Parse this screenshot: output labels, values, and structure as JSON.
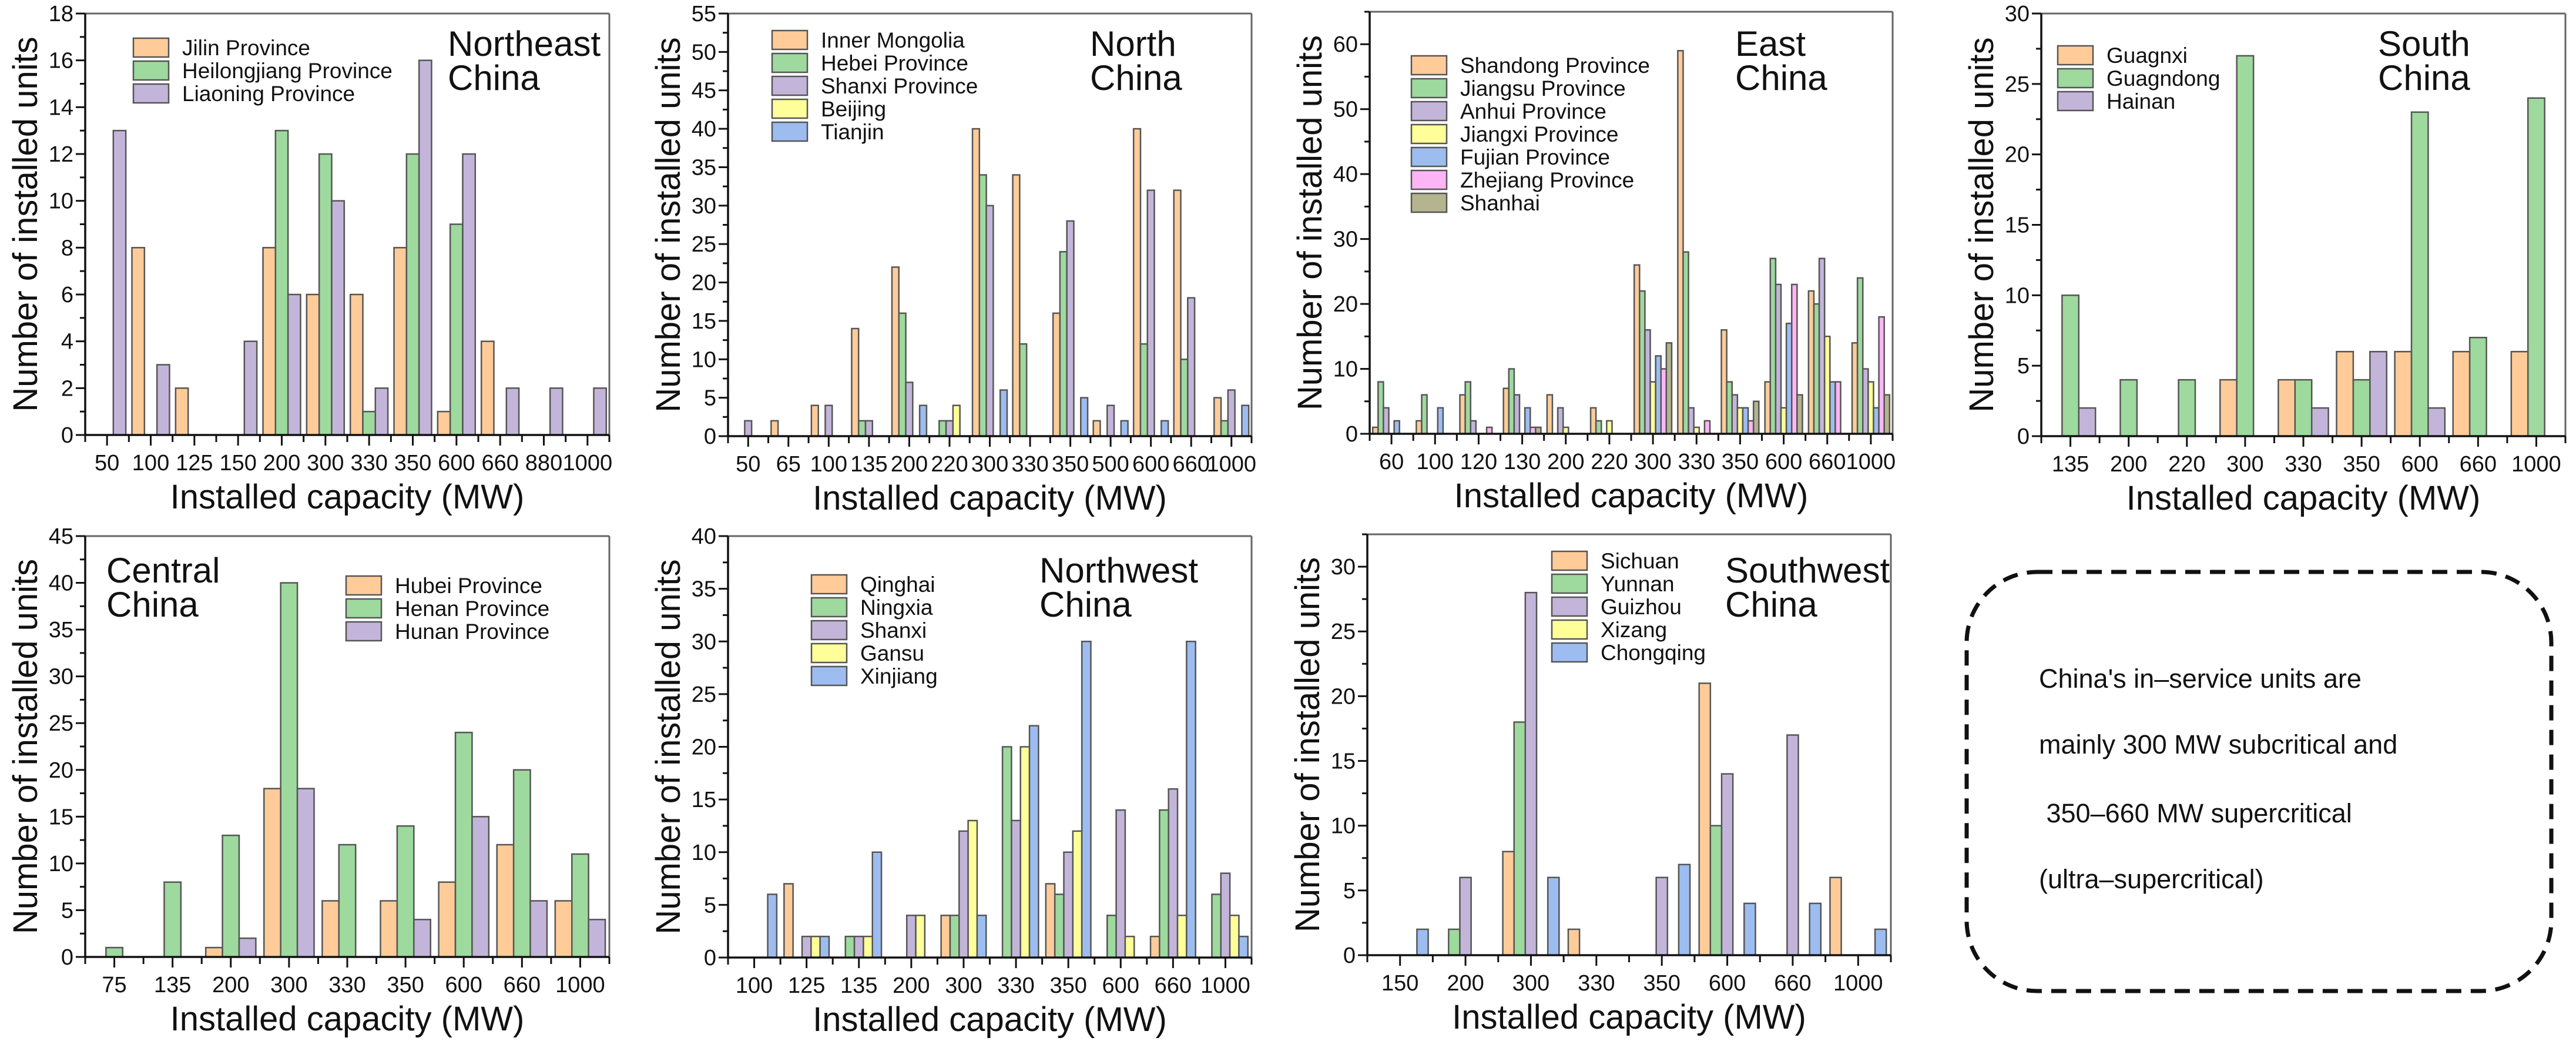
{
  "colors": {
    "orange": "#FFCC99",
    "green": "#9ED99E",
    "purple": "#C3B5DA",
    "yellow": "#FFFF99",
    "blue": "#9DBDF0",
    "pink": "#FFB5F5",
    "olive": "#B4B48E",
    "edge": "#555555"
  },
  "note": {
    "lines": [
      "China's in–service units are",
      "mainly 300 MW subcritical and",
      " 350–660 MW supercritical",
      "(ultra–supercritical)"
    ]
  },
  "chart_data": [
    {
      "type": "bar",
      "region": [
        "Northeast",
        "China"
      ],
      "xlabel": "Installed capacity (MW)",
      "ylabel": "Number of installed units",
      "ylim": [
        0,
        18
      ],
      "ytick_step": 2,
      "legend": "top-left",
      "region_label": "top-right",
      "categories": [
        "50",
        "100",
        "125",
        "150",
        "200",
        "300",
        "330",
        "350",
        "600",
        "660",
        "880",
        "1000"
      ],
      "series": [
        {
          "name": "Jilin Province",
          "color": "orange",
          "values": [
            0,
            8,
            2,
            0,
            8,
            6,
            6,
            8,
            1,
            4,
            0,
            0
          ]
        },
        {
          "name": "Heilongjiang Province",
          "color": "green",
          "values": [
            0,
            0,
            0,
            0,
            13,
            12,
            1,
            12,
            9,
            0,
            0,
            0
          ]
        },
        {
          "name": "Liaoning Province",
          "color": "purple",
          "values": [
            13,
            3,
            0,
            4,
            6,
            10,
            2,
            16,
            12,
            2,
            2,
            2
          ]
        }
      ]
    },
    {
      "type": "bar",
      "region": [
        "North",
        "China"
      ],
      "xlabel": "Installed capacity (MW)",
      "ylabel": "Number of installed units",
      "ylim": [
        0,
        55
      ],
      "ytick_step": 5,
      "legend": "top-left",
      "region_label": "top-right",
      "categories": [
        "50",
        "65",
        "100",
        "135",
        "200",
        "220",
        "300",
        "330",
        "350",
        "500",
        "600",
        "660",
        "1000"
      ],
      "series": [
        {
          "name": "Inner Mongolia",
          "color": "orange",
          "values": [
            0,
            2,
            4,
            14,
            22,
            0,
            40,
            34,
            16,
            2,
            40,
            32,
            5
          ]
        },
        {
          "name": "Hebei Province",
          "color": "green",
          "values": [
            0,
            0,
            0,
            2,
            16,
            2,
            34,
            12,
            24,
            0,
            12,
            10,
            2
          ]
        },
        {
          "name": "Shanxi Province",
          "color": "purple",
          "values": [
            2,
            0,
            4,
            2,
            7,
            2,
            30,
            0,
            28,
            4,
            32,
            18,
            6
          ]
        },
        {
          "name": "Beijing",
          "color": "yellow",
          "values": [
            0,
            0,
            0,
            0,
            0,
            4,
            0,
            0,
            0,
            0,
            0,
            0,
            0
          ]
        },
        {
          "name": "Tianjin",
          "color": "blue",
          "values": [
            0,
            0,
            0,
            0,
            4,
            0,
            6,
            0,
            5,
            2,
            2,
            0,
            4
          ]
        }
      ]
    },
    {
      "type": "bar",
      "region": [
        "East",
        "China"
      ],
      "xlabel": "Installed capacity (MW)",
      "ylabel": "Number of installed units",
      "ylim": [
        0,
        65
      ],
      "ytick_step": 10,
      "legend": "top-left",
      "region_label": "top-right",
      "categories": [
        "60",
        "100",
        "120",
        "130",
        "200",
        "220",
        "300",
        "330",
        "350",
        "600",
        "660",
        "1000"
      ],
      "series": [
        {
          "name": "Shandong Province",
          "color": "orange",
          "values": [
            1,
            2,
            6,
            7,
            6,
            4,
            26,
            59,
            16,
            8,
            22,
            14
          ]
        },
        {
          "name": "Jiangsu Province",
          "color": "green",
          "values": [
            8,
            6,
            8,
            10,
            0,
            2,
            22,
            28,
            8,
            27,
            20,
            24
          ]
        },
        {
          "name": "Anhui Province",
          "color": "purple",
          "values": [
            4,
            0,
            2,
            6,
            4,
            0,
            16,
            4,
            6,
            23,
            27,
            10
          ]
        },
        {
          "name": "Jiangxi Province",
          "color": "yellow",
          "values": [
            0,
            0,
            0,
            0,
            1,
            2,
            8,
            1,
            4,
            4,
            15,
            8
          ]
        },
        {
          "name": "Fujian Province",
          "color": "blue",
          "values": [
            2,
            4,
            0,
            4,
            0,
            0,
            12,
            0,
            4,
            17,
            8,
            4
          ]
        },
        {
          "name": "Zhejiang Province",
          "color": "pink",
          "values": [
            0,
            0,
            1,
            1,
            0,
            0,
            10,
            2,
            2,
            23,
            8,
            18
          ]
        },
        {
          "name": "Shanhai",
          "color": "olive",
          "values": [
            0,
            0,
            0,
            1,
            0,
            0,
            14,
            0,
            5,
            6,
            0,
            6
          ]
        }
      ]
    },
    {
      "type": "bar",
      "region": [
        "South",
        "China"
      ],
      "xlabel": "Installed capacity (MW)",
      "ylabel": "Number of installed units",
      "ylim": [
        0,
        30
      ],
      "ytick_step": 5,
      "legend": "top-left",
      "region_label": "top-right",
      "categories": [
        "135",
        "200",
        "220",
        "300",
        "330",
        "350",
        "600",
        "660",
        "1000"
      ],
      "series": [
        {
          "name": "Guagnxi",
          "color": "orange",
          "values": [
            0,
            0,
            0,
            4,
            4,
            6,
            6,
            6,
            6
          ]
        },
        {
          "name": "Guagndong",
          "color": "green",
          "values": [
            10,
            4,
            4,
            27,
            4,
            4,
            23,
            7,
            24
          ]
        },
        {
          "name": "Hainan",
          "color": "purple",
          "values": [
            2,
            0,
            0,
            0,
            2,
            6,
            2,
            0,
            0
          ]
        }
      ]
    },
    {
      "type": "bar",
      "region": [
        "Central",
        "China"
      ],
      "xlabel": "Installed capacity (MW)",
      "ylabel": "Number of installed units",
      "ylim": [
        0,
        45
      ],
      "ytick_step": 5,
      "legend": "top-right",
      "region_label": "top-left",
      "categories": [
        "75",
        "135",
        "200",
        "300",
        "330",
        "350",
        "600",
        "660",
        "1000"
      ],
      "series": [
        {
          "name": "Hubei Province",
          "color": "orange",
          "values": [
            0,
            0,
            1,
            18,
            6,
            6,
            8,
            12,
            6
          ]
        },
        {
          "name": "Henan Province",
          "color": "green",
          "values": [
            1,
            8,
            13,
            40,
            12,
            14,
            24,
            20,
            11
          ]
        },
        {
          "name": "Hunan Province",
          "color": "purple",
          "values": [
            0,
            0,
            2,
            18,
            0,
            4,
            15,
            6,
            4
          ]
        }
      ]
    },
    {
      "type": "bar",
      "region": [
        "Northwest",
        "China"
      ],
      "xlabel": "Installed capacity (MW)",
      "ylabel": "Number of installed units",
      "ylim": [
        0,
        40
      ],
      "ytick_step": 5,
      "legend": "top-left",
      "region_label": "top-right",
      "categories": [
        "100",
        "125",
        "135",
        "200",
        "300",
        "330",
        "350",
        "600",
        "660",
        "1000"
      ],
      "series": [
        {
          "name": "Qinghai",
          "color": "orange",
          "values": [
            0,
            7,
            0,
            0,
            4,
            0,
            7,
            0,
            2,
            0
          ]
        },
        {
          "name": "Ningxia",
          "color": "green",
          "values": [
            0,
            0,
            2,
            0,
            4,
            20,
            6,
            4,
            14,
            6
          ]
        },
        {
          "name": "Shanxi",
          "color": "purple",
          "values": [
            0,
            2,
            2,
            4,
            12,
            13,
            10,
            14,
            16,
            8
          ]
        },
        {
          "name": "Gansu",
          "color": "yellow",
          "values": [
            0,
            2,
            2,
            4,
            13,
            20,
            12,
            2,
            4,
            4
          ]
        },
        {
          "name": "Xinjiang",
          "color": "blue",
          "values": [
            6,
            2,
            10,
            0,
            4,
            22,
            30,
            0,
            30,
            2
          ]
        }
      ]
    },
    {
      "type": "bar",
      "region": [
        "Southwest",
        "China"
      ],
      "xlabel": "Installed capacity (MW)",
      "ylabel": "Number of installed units",
      "ylim": [
        0,
        32.5
      ],
      "ytick_step": 5,
      "legend": "top-center",
      "region_label": "top-right",
      "categories": [
        "150",
        "200",
        "300",
        "330",
        "350",
        "600",
        "660",
        "1000"
      ],
      "series": [
        {
          "name": "Sichuan",
          "color": "orange",
          "values": [
            0,
            0,
            8,
            2,
            0,
            21,
            0,
            6
          ]
        },
        {
          "name": "Yunnan",
          "color": "green",
          "values": [
            0,
            2,
            18,
            0,
            0,
            10,
            0,
            0
          ]
        },
        {
          "name": "Guizhou",
          "color": "purple",
          "values": [
            0,
            6,
            28,
            0,
            6,
            14,
            17,
            0
          ]
        },
        {
          "name": "Xizang",
          "color": "yellow",
          "values": [
            0,
            0,
            0,
            0,
            0,
            0,
            0,
            0
          ]
        },
        {
          "name": "Chongqing",
          "color": "blue",
          "values": [
            2,
            0,
            6,
            0,
            7,
            4,
            4,
            2
          ]
        }
      ]
    }
  ]
}
